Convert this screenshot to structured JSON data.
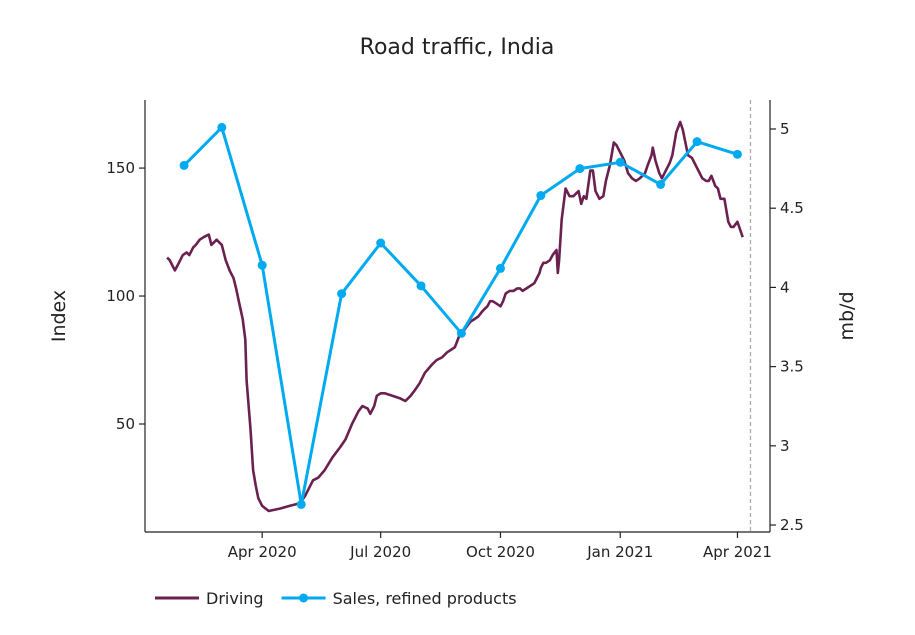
{
  "chart_data": {
    "type": "line",
    "title": "Road traffic, India",
    "ylabel_left": "Index",
    "ylabel_right": "mb/d",
    "xlim": [
      "2020-01-02",
      "2021-04-26"
    ],
    "ylim_left": [
      7.8,
      176.6
    ],
    "ylim_right": [
      2.456,
      5.183
    ],
    "grid": false,
    "legend_placement": "bottom-left",
    "x_ticks": [
      {
        "date": "2020-04-01",
        "label": "Apr 2020"
      },
      {
        "date": "2020-07-01",
        "label": "Jul 2020"
      },
      {
        "date": "2020-10-01",
        "label": "Oct 2020"
      },
      {
        "date": "2021-01-01",
        "label": "Jan 2021"
      },
      {
        "date": "2021-04-01",
        "label": "Apr 2021"
      }
    ],
    "y_ticks_left": [
      {
        "value": 50,
        "label": "50"
      },
      {
        "value": 100,
        "label": "100"
      },
      {
        "value": 150,
        "label": "150"
      }
    ],
    "y_ticks_right": [
      {
        "value": 2.5,
        "label": "2.5"
      },
      {
        "value": 3,
        "label": "3"
      },
      {
        "value": 3.5,
        "label": "3.5"
      },
      {
        "value": 4,
        "label": "4"
      },
      {
        "value": 4.5,
        "label": "4.5"
      },
      {
        "value": 5,
        "label": "5"
      }
    ],
    "vline_date": "2021-04-11",
    "vline_color": "#aaaaaa",
    "series": [
      {
        "name": "Driving",
        "axis": "left",
        "color": "#6b2150",
        "markers": false,
        "points": [
          [
            "2020-01-19",
            115
          ],
          [
            "2020-01-21",
            114
          ],
          [
            "2020-01-25",
            110
          ],
          [
            "2020-01-28",
            113
          ],
          [
            "2020-01-31",
            116
          ],
          [
            "2020-02-03",
            117
          ],
          [
            "2020-02-05",
            116
          ],
          [
            "2020-02-08",
            119
          ],
          [
            "2020-02-10",
            120
          ],
          [
            "2020-02-13",
            122
          ],
          [
            "2020-02-16",
            123
          ],
          [
            "2020-02-20",
            124
          ],
          [
            "2020-02-22",
            120
          ],
          [
            "2020-02-24",
            121
          ],
          [
            "2020-02-26",
            122
          ],
          [
            "2020-03-01",
            120
          ],
          [
            "2020-03-04",
            114
          ],
          [
            "2020-03-07",
            110
          ],
          [
            "2020-03-10",
            107
          ],
          [
            "2020-03-12",
            103
          ],
          [
            "2020-03-14",
            98
          ],
          [
            "2020-03-17",
            91
          ],
          [
            "2020-03-19",
            83
          ],
          [
            "2020-03-20",
            67
          ],
          [
            "2020-03-23",
            48
          ],
          [
            "2020-03-25",
            32
          ],
          [
            "2020-03-27",
            26
          ],
          [
            "2020-03-29",
            21
          ],
          [
            "2020-04-01",
            18
          ],
          [
            "2020-04-06",
            16
          ],
          [
            "2020-04-15",
            17
          ],
          [
            "2020-04-22",
            18
          ],
          [
            "2020-04-30",
            19
          ],
          [
            "2020-05-04",
            22
          ],
          [
            "2020-05-10",
            28
          ],
          [
            "2020-05-14",
            29
          ],
          [
            "2020-05-19",
            32
          ],
          [
            "2020-05-25",
            37
          ],
          [
            "2020-05-31",
            41
          ],
          [
            "2020-06-04",
            44
          ],
          [
            "2020-06-09",
            50
          ],
          [
            "2020-06-14",
            55
          ],
          [
            "2020-06-17",
            57
          ],
          [
            "2020-06-21",
            56
          ],
          [
            "2020-06-23",
            54
          ],
          [
            "2020-06-26",
            57
          ],
          [
            "2020-06-28",
            61
          ],
          [
            "2020-07-01",
            62
          ],
          [
            "2020-07-04",
            62
          ],
          [
            "2020-07-10",
            61
          ],
          [
            "2020-07-16",
            60
          ],
          [
            "2020-07-20",
            59
          ],
          [
            "2020-07-24",
            61
          ],
          [
            "2020-07-27",
            63
          ],
          [
            "2020-07-31",
            66
          ],
          [
            "2020-08-04",
            70
          ],
          [
            "2020-08-09",
            73
          ],
          [
            "2020-08-13",
            75
          ],
          [
            "2020-08-17",
            76
          ],
          [
            "2020-08-21",
            78
          ],
          [
            "2020-08-24",
            79
          ],
          [
            "2020-08-27",
            80
          ],
          [
            "2020-08-30",
            84
          ],
          [
            "2020-09-02",
            86
          ],
          [
            "2020-09-05",
            88
          ],
          [
            "2020-09-08",
            90
          ],
          [
            "2020-09-11",
            91
          ],
          [
            "2020-09-14",
            92
          ],
          [
            "2020-09-17",
            94
          ],
          [
            "2020-09-19",
            95
          ],
          [
            "2020-09-21",
            96
          ],
          [
            "2020-09-23",
            98
          ],
          [
            "2020-09-25",
            98
          ],
          [
            "2020-09-28",
            97
          ],
          [
            "2020-10-01",
            96
          ],
          [
            "2020-10-03",
            98
          ],
          [
            "2020-10-05",
            101
          ],
          [
            "2020-10-08",
            102
          ],
          [
            "2020-10-11",
            102
          ],
          [
            "2020-10-14",
            103
          ],
          [
            "2020-10-16",
            103
          ],
          [
            "2020-10-18",
            102
          ],
          [
            "2020-10-21",
            103
          ],
          [
            "2020-10-24",
            104
          ],
          [
            "2020-10-27",
            105
          ],
          [
            "2020-10-29",
            107
          ],
          [
            "2020-10-31",
            109
          ],
          [
            "2020-11-01",
            111
          ],
          [
            "2020-11-03",
            113
          ],
          [
            "2020-11-05",
            113
          ],
          [
            "2020-11-08",
            114
          ],
          [
            "2020-11-10",
            116
          ],
          [
            "2020-11-13",
            118
          ],
          [
            "2020-11-14",
            109
          ],
          [
            "2020-11-15",
            114
          ],
          [
            "2020-11-17",
            130
          ],
          [
            "2020-11-20",
            142
          ],
          [
            "2020-11-23",
            139
          ],
          [
            "2020-11-26",
            139
          ],
          [
            "2020-11-30",
            141
          ],
          [
            "2020-12-02",
            136
          ],
          [
            "2020-12-04",
            139
          ],
          [
            "2020-12-06",
            138
          ],
          [
            "2020-12-09",
            149
          ],
          [
            "2020-12-11",
            149
          ],
          [
            "2020-12-13",
            141
          ],
          [
            "2020-12-16",
            138
          ],
          [
            "2020-12-19",
            139
          ],
          [
            "2020-12-21",
            145
          ],
          [
            "2020-12-24",
            151
          ],
          [
            "2020-12-27",
            160
          ],
          [
            "2020-12-29",
            159
          ],
          [
            "2021-01-01",
            156
          ],
          [
            "2021-01-04",
            153
          ],
          [
            "2021-01-07",
            148
          ],
          [
            "2021-01-10",
            146
          ],
          [
            "2021-01-13",
            145
          ],
          [
            "2021-01-16",
            146
          ],
          [
            "2021-01-20",
            148
          ],
          [
            "2021-01-22",
            151
          ],
          [
            "2021-01-25",
            155
          ],
          [
            "2021-01-26",
            158
          ],
          [
            "2021-01-28",
            153
          ],
          [
            "2021-01-31",
            148
          ],
          [
            "2021-02-02",
            146
          ],
          [
            "2021-02-05",
            149
          ],
          [
            "2021-02-08",
            152
          ],
          [
            "2021-02-10",
            155
          ],
          [
            "2021-02-13",
            164
          ],
          [
            "2021-02-16",
            168
          ],
          [
            "2021-02-18",
            165
          ],
          [
            "2021-02-22",
            155
          ],
          [
            "2021-02-25",
            154
          ],
          [
            "2021-02-27",
            152
          ],
          [
            "2021-03-02",
            149
          ],
          [
            "2021-03-05",
            146
          ],
          [
            "2021-03-08",
            145
          ],
          [
            "2021-03-10",
            145
          ],
          [
            "2021-03-12",
            147
          ],
          [
            "2021-03-15",
            143
          ],
          [
            "2021-03-17",
            142
          ],
          [
            "2021-03-19",
            138
          ],
          [
            "2021-03-22",
            138
          ],
          [
            "2021-03-25",
            129
          ],
          [
            "2021-03-27",
            127
          ],
          [
            "2021-03-29",
            127
          ],
          [
            "2021-04-01",
            129
          ],
          [
            "2021-04-03",
            126
          ],
          [
            "2021-04-05",
            123
          ]
        ]
      },
      {
        "name": "Sales, refined products",
        "axis": "right",
        "color": "#00aaf0",
        "markers": true,
        "points": [
          [
            "2020-02-01",
            4.77
          ],
          [
            "2020-03-01",
            5.01
          ],
          [
            "2020-04-01",
            4.14
          ],
          [
            "2020-05-01",
            2.63
          ],
          [
            "2020-06-01",
            3.96
          ],
          [
            "2020-07-01",
            4.28
          ],
          [
            "2020-08-01",
            4.01
          ],
          [
            "2020-09-01",
            3.71
          ],
          [
            "2020-10-01",
            4.12
          ],
          [
            "2020-11-01",
            4.58
          ],
          [
            "2020-12-01",
            4.75
          ],
          [
            "2021-01-01",
            4.79
          ],
          [
            "2021-02-01",
            4.65
          ],
          [
            "2021-03-01",
            4.92
          ],
          [
            "2021-04-01",
            4.84
          ]
        ]
      }
    ]
  }
}
